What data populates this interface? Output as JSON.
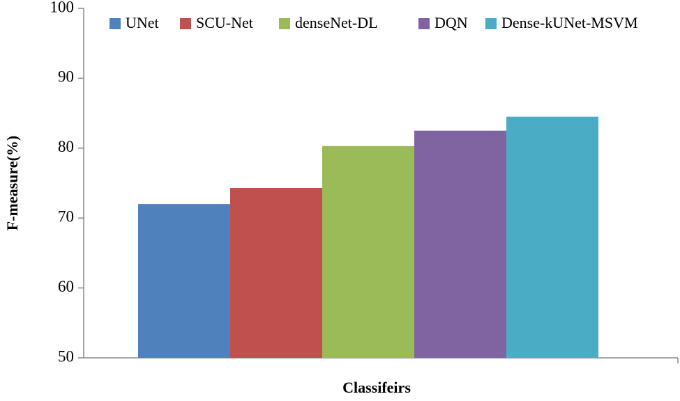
{
  "chart_data": {
    "type": "bar",
    "categories": [
      null
    ],
    "series": [
      {
        "name": "UNet",
        "color": "#4f81bd",
        "values": [
          72
        ]
      },
      {
        "name": "SCU-Net",
        "color": "#c0504d",
        "values": [
          74.3
        ]
      },
      {
        "name": "denseNet-DL",
        "color": "#9bbb59",
        "values": [
          80.3
        ]
      },
      {
        "name": "DQN",
        "color": "#8064a2",
        "values": [
          82.5
        ]
      },
      {
        "name": "Dense-kUNet-MSVM",
        "color": "#4bacc6",
        "values": [
          84.5
        ]
      }
    ],
    "x_label": "Classifeirs",
    "y_label": "F-measure(%)",
    "ylim": [
      50,
      100
    ],
    "yticks": [
      50,
      60,
      70,
      80,
      90,
      100
    ],
    "grid": false,
    "legend": "top"
  }
}
